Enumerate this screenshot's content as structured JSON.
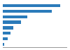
{
  "chart_data": {
    "type": "bar",
    "orientation": "horizontal",
    "categories": [
      null,
      null,
      null,
      null,
      null,
      null,
      null,
      null
    ],
    "values": [
      3200,
      2750,
      1350,
      1000,
      600,
      420,
      290,
      90
    ],
    "color": "#2b7bba",
    "xlim": [
      0,
      3600
    ],
    "grid": false,
    "tick_labels": false
  }
}
